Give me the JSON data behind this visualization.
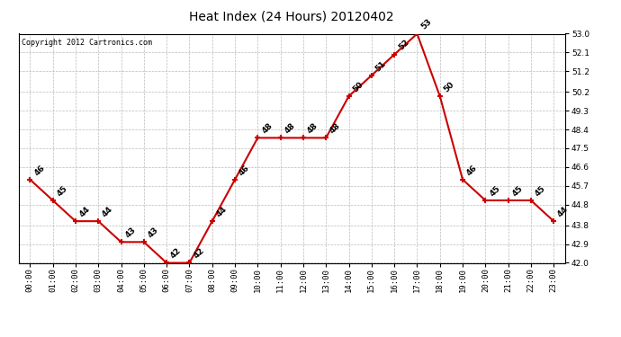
{
  "title": "Heat Index (24 Hours) 20120402",
  "copyright": "Copyright 2012 Cartronics.com",
  "hours": [
    "00:00",
    "01:00",
    "02:00",
    "03:00",
    "04:00",
    "05:00",
    "06:00",
    "07:00",
    "08:00",
    "09:00",
    "10:00",
    "11:00",
    "12:00",
    "13:00",
    "14:00",
    "15:00",
    "16:00",
    "17:00",
    "18:00",
    "19:00",
    "20:00",
    "21:00",
    "22:00",
    "23:00"
  ],
  "values": [
    46,
    45,
    44,
    44,
    43,
    43,
    42,
    42,
    44,
    46,
    48,
    48,
    48,
    48,
    50,
    51,
    52,
    53,
    50,
    46,
    45,
    45,
    45,
    44
  ],
  "ylim_min": 42.0,
  "ylim_max": 53.0,
  "yticks": [
    42.0,
    42.9,
    43.8,
    44.8,
    45.7,
    46.6,
    47.5,
    48.4,
    49.3,
    50.2,
    51.2,
    52.1,
    53.0
  ],
  "ytick_labels": [
    "42.0",
    "42.9",
    "43.8",
    "44.8",
    "45.7",
    "46.6",
    "47.5",
    "48.4",
    "49.3",
    "50.2",
    "51.2",
    "52.1",
    "53.0"
  ],
  "line_color": "#cc0000",
  "marker": "+",
  "bg_color": "#ffffff",
  "grid_color": "#bbbbbb",
  "label_fontsize": 6.5,
  "title_fontsize": 10,
  "copyright_fontsize": 6,
  "tick_fontsize": 6.5
}
